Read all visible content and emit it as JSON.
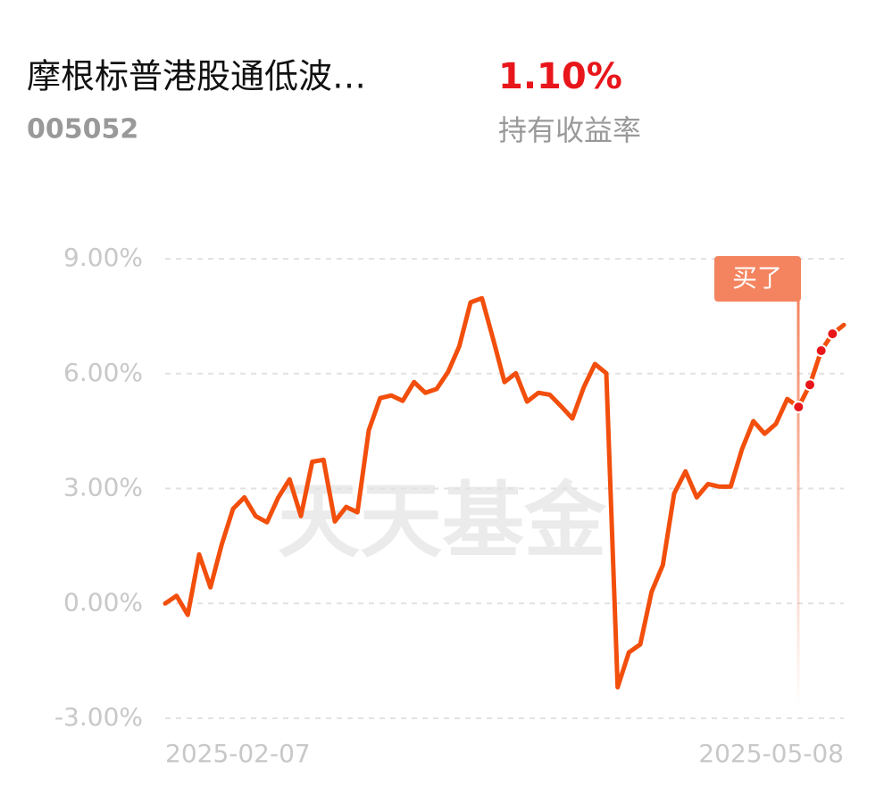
{
  "chart_data": {
    "type": "line",
    "title": "摩根标普港股通低波…",
    "code": "005052",
    "holding_return": "1.10%",
    "holding_return_label": "持有收益率",
    "watermark": "天天基金",
    "annotation": "买了",
    "color": "#f24e0c",
    "grid": true,
    "ylim": [
      -3,
      9
    ],
    "yticks": [
      {
        "value": -3,
        "label": "-3.00%"
      },
      {
        "value": 0,
        "label": "0.00%"
      },
      {
        "value": 3,
        "label": "3.00%"
      },
      {
        "value": 6,
        "label": "6.00%"
      },
      {
        "value": 9,
        "label": "9.00%"
      }
    ],
    "categories": [
      "2025-02-07",
      null,
      null,
      null,
      null,
      null,
      null,
      null,
      null,
      null,
      null,
      null,
      null,
      null,
      null,
      null,
      null,
      null,
      null,
      null,
      null,
      null,
      null,
      null,
      null,
      null,
      null,
      null,
      null,
      null,
      null,
      null,
      null,
      null,
      null,
      null,
      null,
      null,
      null,
      null,
      null,
      null,
      null,
      null,
      null,
      null,
      null,
      null,
      null,
      null,
      null,
      null,
      null,
      null,
      null,
      null,
      null,
      null,
      null,
      null,
      "2025-05-08"
    ],
    "values": [
      0,
      0.2,
      -0.3,
      1.28,
      0.42,
      1.54,
      2.47,
      2.77,
      2.28,
      2.12,
      2.77,
      3.24,
      2.28,
      3.7,
      3.75,
      2.14,
      2.52,
      2.38,
      4.52,
      5.36,
      5.43,
      5.29,
      5.78,
      5.5,
      5.6,
      6.04,
      6.71,
      7.86,
      7.97,
      6.9,
      5.78,
      6.01,
      5.27,
      5.5,
      5.45,
      5.15,
      4.83,
      5.64,
      6.25,
      6.01,
      -2.19,
      -1.28,
      -1.07,
      0.3,
      1.0,
      2.87,
      3.45,
      2.77,
      3.12,
      3.05,
      3.05,
      4.03,
      4.76,
      4.43,
      4.69,
      5.34,
      5.13,
      5.71,
      6.6,
      7.04,
      7.27
    ]
  }
}
